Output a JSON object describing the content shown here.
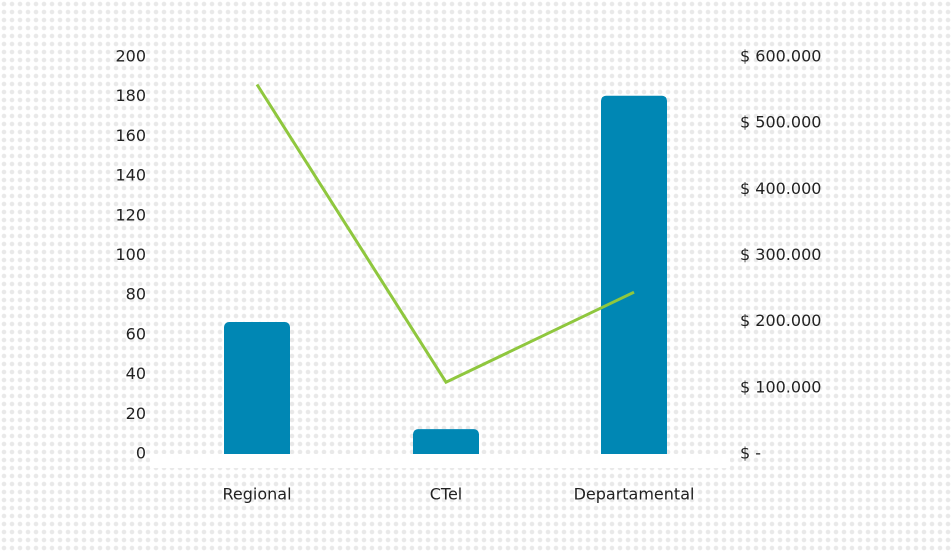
{
  "chart_data": {
    "type": "bar",
    "categories": [
      "Regional",
      "CTel",
      "Departamental"
    ],
    "series": [
      {
        "type": "bar",
        "axis": "left",
        "values": [
          66,
          12,
          180
        ]
      },
      {
        "type": "line",
        "axis": "right",
        "values": [
          557000,
          107000,
          243000
        ]
      }
    ],
    "y_left": {
      "min": 0,
      "max": 200,
      "ticks": [
        0,
        20,
        40,
        60,
        80,
        100,
        120,
        140,
        160,
        180,
        200
      ],
      "tick_labels": [
        "0",
        "20",
        "40",
        "60",
        "80",
        "100",
        "120",
        "140",
        "160",
        "180",
        "200"
      ]
    },
    "y_right": {
      "min": 0,
      "max": 600000,
      "ticks": [
        0,
        100000,
        200000,
        300000,
        400000,
        500000,
        600000
      ],
      "tick_labels": [
        "$ -",
        "$ 100.000",
        "$ 200.000",
        "$ 300.000",
        "$ 400.000",
        "$ 500.000",
        "$ 600.000"
      ]
    },
    "title": "",
    "xlabel": "",
    "ylabel": "",
    "grid": false,
    "legend": "none",
    "colors": {
      "bar": "#0087b4",
      "line": "#8fc73e",
      "text": "#222222"
    }
  }
}
